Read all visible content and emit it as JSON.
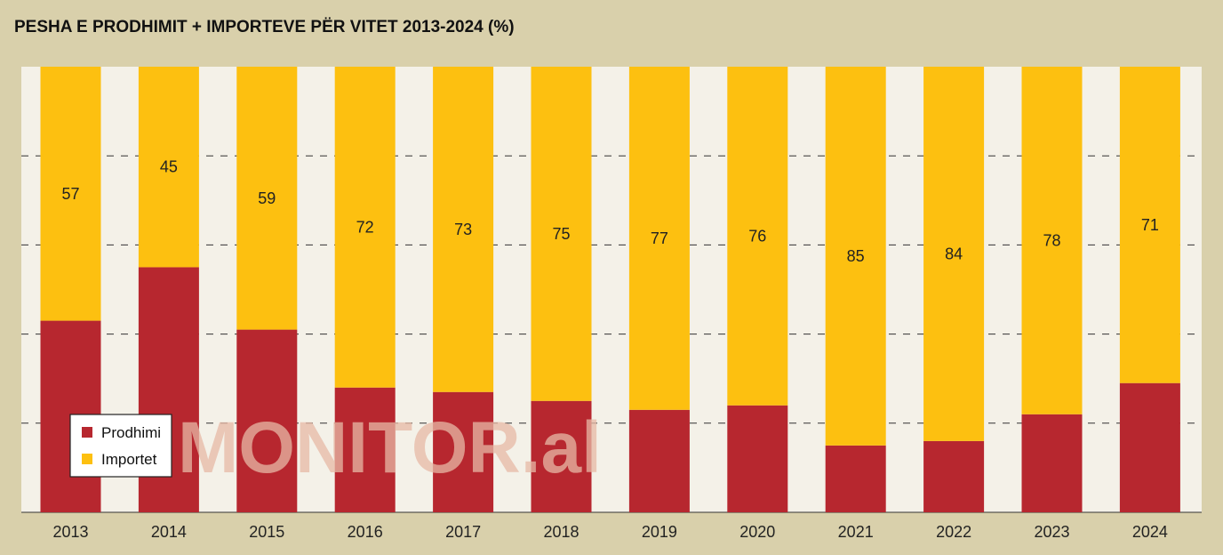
{
  "chart_data": {
    "type": "bar",
    "stacked": true,
    "title": "PESHA E PRODHIMIT + IMPORTEVE PËR VITET 2013-2024 (%)",
    "categories": [
      "2013",
      "2014",
      "2015",
      "2016",
      "2017",
      "2018",
      "2019",
      "2020",
      "2021",
      "2022",
      "2023",
      "2024"
    ],
    "series": [
      {
        "name": "Prodhimi",
        "values": [
          43,
          55,
          41,
          28,
          27,
          25,
          23,
          24,
          15,
          16,
          22,
          29
        ],
        "color": "#b7272f"
      },
      {
        "name": "Importet",
        "values": [
          57,
          45,
          59,
          72,
          73,
          75,
          77,
          76,
          85,
          84,
          78,
          71
        ],
        "color": "#fdc010"
      }
    ],
    "data_labels_series": "Importet",
    "ylim": [
      0,
      100
    ],
    "grid": true,
    "legend_position": "bottom-left",
    "watermark": "MONITOR.al",
    "colors": {
      "background": "#d9d0ab",
      "plot_bg": "#f4f1e8",
      "grid": "#333333"
    }
  }
}
